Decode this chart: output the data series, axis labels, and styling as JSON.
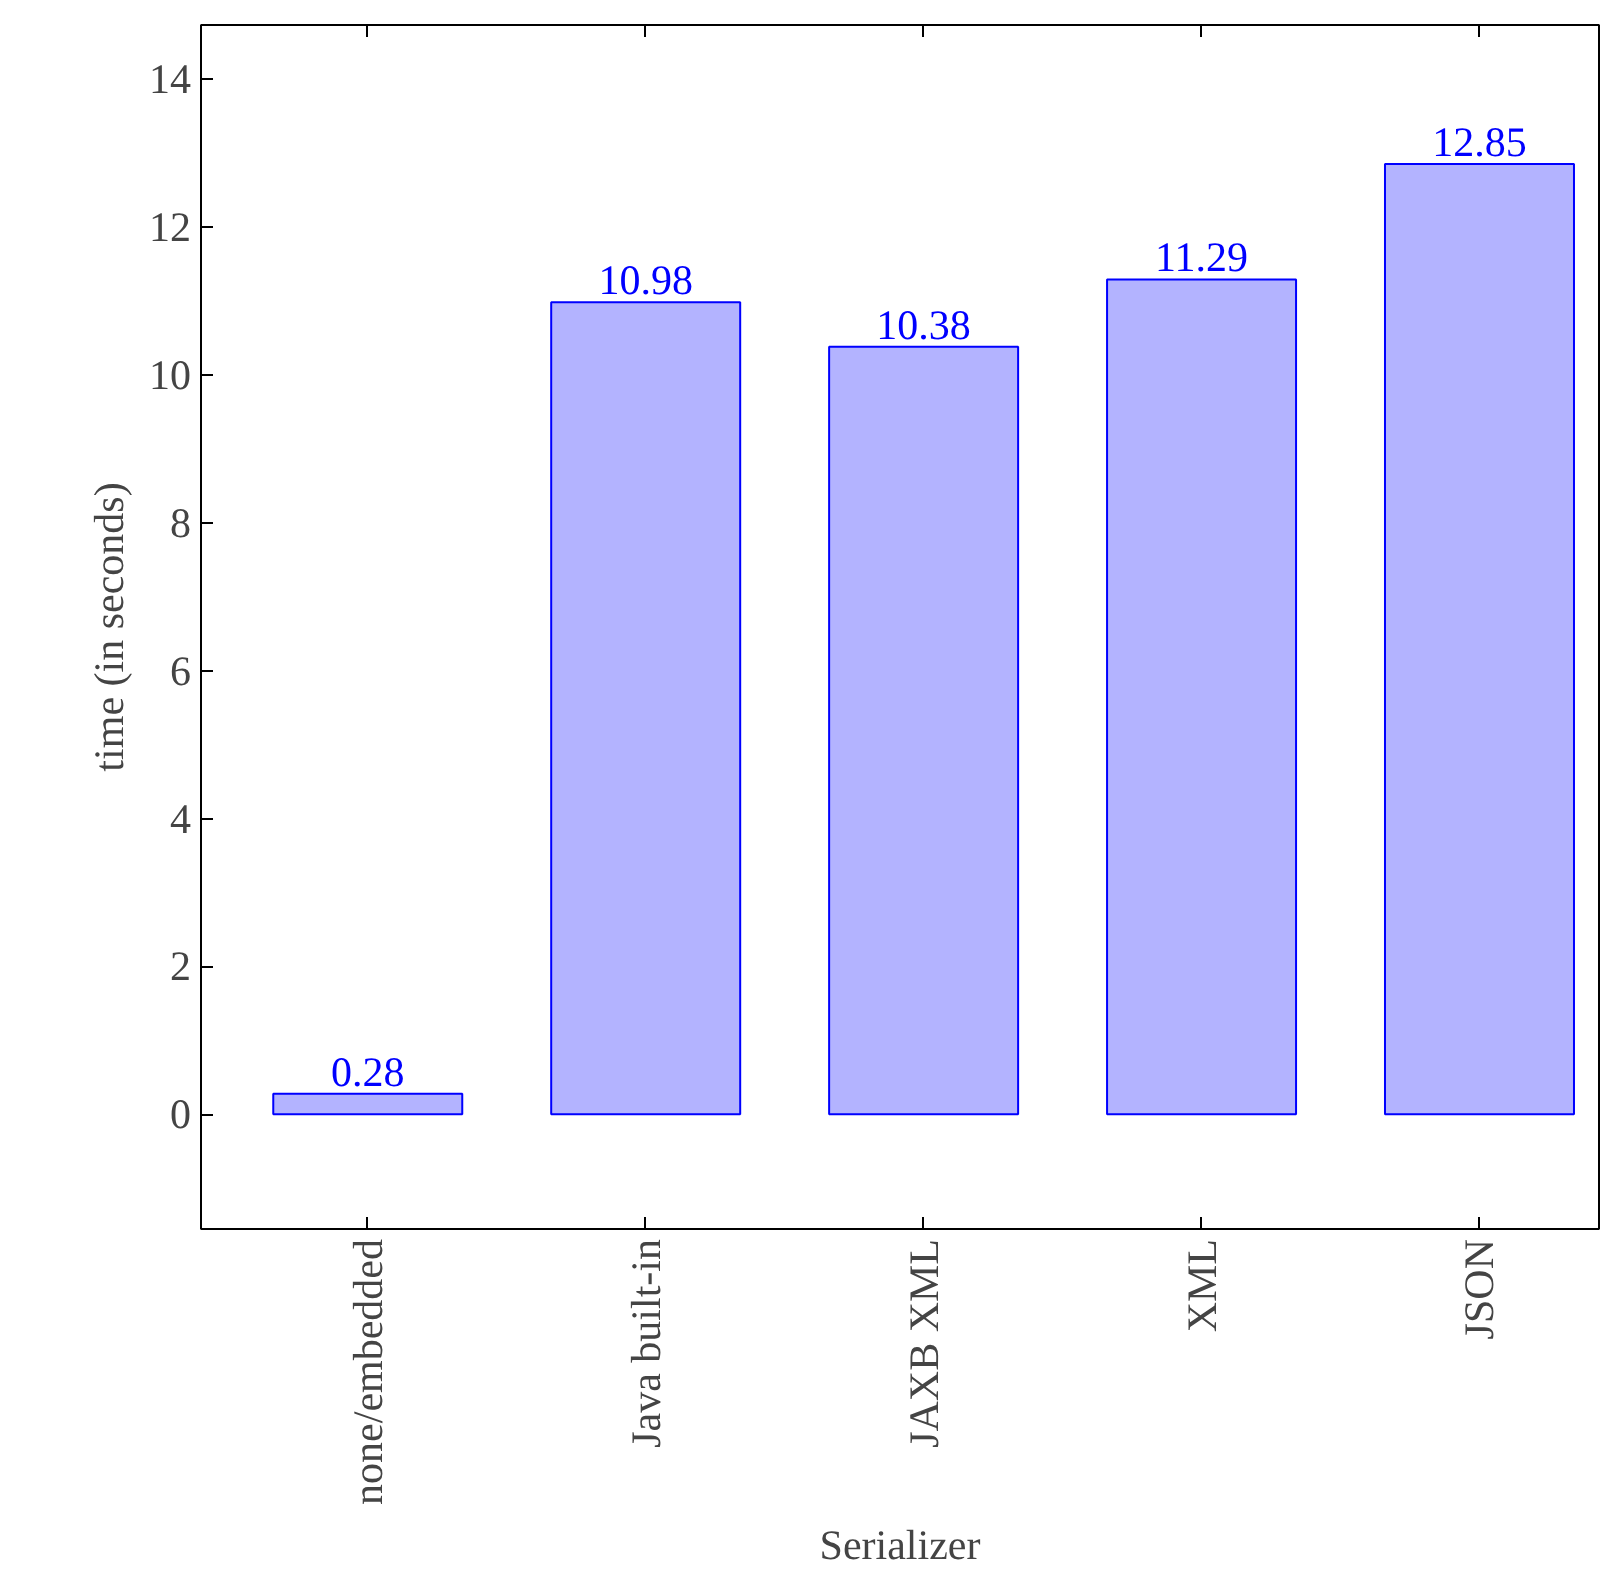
{
  "chart_data": {
    "type": "bar",
    "xlabel": "Serializer",
    "ylabel": "time (in seconds)",
    "categories": [
      "none/embedded",
      "Java built-in",
      "JAXB XML",
      "XML",
      "JSON"
    ],
    "values": [
      0.28,
      10.98,
      10.38,
      11.29,
      12.85
    ],
    "color": "#b3b3ff",
    "ylim": [
      -1.55,
      14.73
    ],
    "yticks": [
      0,
      2,
      4,
      6,
      8,
      10,
      12,
      14
    ],
    "data_labels": true
  }
}
